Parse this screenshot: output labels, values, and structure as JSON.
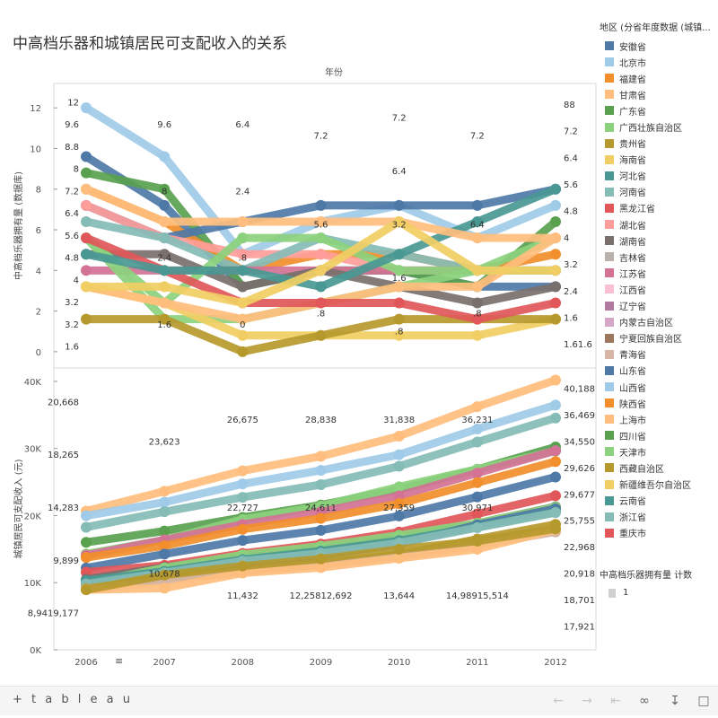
{
  "chart_title": "中高档乐器和城镇居民可支配收入的关系",
  "column_header": "年份",
  "legend": {
    "title": "地区 (分省年度数据 (城镇...",
    "items": [
      {
        "name": "安徽省",
        "color": "#4e79a7"
      },
      {
        "name": "北京市",
        "color": "#a0cbe8"
      },
      {
        "name": "福建省",
        "color": "#f28e2b"
      },
      {
        "name": "甘肃省",
        "color": "#ffbe7d"
      },
      {
        "name": "广东省",
        "color": "#59a14f"
      },
      {
        "name": "广西壮族自治区",
        "color": "#8cd17d"
      },
      {
        "name": "贵州省",
        "color": "#b6992d"
      },
      {
        "name": "海南省",
        "color": "#f1ce63"
      },
      {
        "name": "河北省",
        "color": "#499894"
      },
      {
        "name": "河南省",
        "color": "#86bcb6"
      },
      {
        "name": "黑龙江省",
        "color": "#e15759"
      },
      {
        "name": "湖北省",
        "color": "#ff9d9a"
      },
      {
        "name": "湖南省",
        "color": "#79706e"
      },
      {
        "name": "吉林省",
        "color": "#bab0ac"
      },
      {
        "name": "江苏省",
        "color": "#d37295"
      },
      {
        "name": "江西省",
        "color": "#fabfd2"
      },
      {
        "name": "辽宁省",
        "color": "#b07aa1"
      },
      {
        "name": "内蒙古自治区",
        "color": "#d4a6c8"
      },
      {
        "name": "宁夏回族自治区",
        "color": "#9d7660"
      },
      {
        "name": "青海省",
        "color": "#d7b5a6"
      },
      {
        "name": "山东省",
        "color": "#4e79a7"
      },
      {
        "name": "山西省",
        "color": "#a0cbe8"
      },
      {
        "name": "陕西省",
        "color": "#f28e2b"
      },
      {
        "name": "上海市",
        "color": "#ffbe7d"
      },
      {
        "name": "四川省",
        "color": "#59a14f"
      },
      {
        "name": "天津市",
        "color": "#8cd17d"
      },
      {
        "name": "西藏自治区",
        "color": "#b6992d"
      },
      {
        "name": "新疆维吾尔自治区",
        "color": "#f1ce63"
      },
      {
        "name": "云南省",
        "color": "#499894"
      },
      {
        "name": "浙江省",
        "color": "#86bcb6"
      },
      {
        "name": "重庆市",
        "color": "#e15759"
      }
    ]
  },
  "size_legend": {
    "title": "中高档乐器拥有量 计数",
    "label": "1"
  },
  "toolbar": {
    "logo": "+ t a b l e a u"
  },
  "chart_data": [
    {
      "type": "line",
      "ylabel": "中高档乐器拥有量 (数据库)",
      "ylim": [
        -0.8,
        13.2
      ],
      "yticks": [
        0,
        2,
        4,
        6,
        8,
        10,
        12
      ],
      "x": [
        "2006",
        "2007",
        "2008",
        "2009",
        "2010",
        "2011",
        "2012"
      ],
      "series": [
        {
          "name": "北京市",
          "values": [
            12,
            9.6,
            4.8,
            6.4,
            7.2,
            5.6,
            7.2
          ]
        },
        {
          "name": "安徽省",
          "values": [
            9.6,
            7.2,
            3.2,
            4,
            4,
            3.2,
            3.2
          ]
        },
        {
          "name": "广东省",
          "values": [
            8.8,
            8,
            3.2,
            4,
            4,
            3.2,
            6.4
          ]
        },
        {
          "name": "福建省",
          "values": [
            8,
            6.4,
            4,
            4.8,
            4.8,
            4,
            4.8
          ]
        },
        {
          "name": "山东省",
          "values": [
            7.2,
            5.6,
            6.4,
            7.2,
            7.2,
            7.2,
            8
          ]
        },
        {
          "name": "湖北省",
          "values": [
            7.2,
            5.6,
            4.8,
            4.8,
            4,
            4,
            4
          ]
        },
        {
          "name": "河南省",
          "values": [
            6.4,
            5.6,
            4,
            5.6,
            4.8,
            4,
            4
          ]
        },
        {
          "name": "江苏省",
          "values": [
            4,
            4,
            4,
            4,
            4,
            4,
            4
          ]
        },
        {
          "name": "湖南省",
          "values": [
            4.8,
            4.8,
            3.2,
            4,
            3.2,
            2.4,
            3.2
          ]
        },
        {
          "name": "广西壮族自治区",
          "values": [
            5.6,
            2.4,
            5.6,
            5.6,
            4,
            4,
            4
          ]
        },
        {
          "name": "天津市",
          "values": [
            5.6,
            1.6,
            1.6,
            2.4,
            3.2,
            4,
            5.6
          ]
        },
        {
          "name": "海南省",
          "values": [
            3.2,
            2.4,
            0.8,
            0.8,
            0.8,
            0.8,
            1.6
          ]
        },
        {
          "name": "甘肃省",
          "values": [
            3.2,
            2.4,
            1.6,
            2.4,
            3.2,
            3.2,
            5.6
          ]
        },
        {
          "name": "贵州省",
          "values": [
            1.6,
            1.6,
            0,
            0.8,
            1.6,
            1.6,
            1.6
          ]
        },
        {
          "name": "重庆市",
          "values": [
            5.6,
            4,
            2.4,
            2.4,
            2.4,
            1.6,
            2.4
          ]
        },
        {
          "name": "河北省",
          "values": [
            4.8,
            4,
            4,
            3.2,
            4.8,
            6.4,
            8
          ]
        },
        {
          "name": "上海市",
          "values": [
            8,
            6.4,
            6.4,
            6.4,
            6.4,
            5.6,
            5.6
          ]
        },
        {
          "name": "新疆维吾尔自治区",
          "values": [
            3.2,
            3.2,
            2.4,
            4,
            6.4,
            4,
            4
          ]
        }
      ],
      "point_labels": [
        {
          "x": "2006",
          "text": "12"
        },
        {
          "x": "2006",
          "text": "9.6"
        },
        {
          "x": "2006",
          "text": "8.8"
        },
        {
          "x": "2006",
          "text": "8"
        },
        {
          "x": "2006",
          "text": "7.2"
        },
        {
          "x": "2006",
          "text": "6.4"
        },
        {
          "x": "2006",
          "text": "5.6"
        },
        {
          "x": "2006",
          "text": "4.8"
        },
        {
          "x": "2006",
          "text": "4"
        },
        {
          "x": "2006",
          "text": "3.2"
        },
        {
          "x": "2006",
          "text": "3.2"
        },
        {
          "x": "2006",
          "text": "1.6"
        },
        {
          "x": "2007",
          "text": "9.6"
        },
        {
          "x": "2007",
          "text": "8"
        },
        {
          "x": "2007",
          "text": "2.4"
        },
        {
          "x": "2007",
          "text": "1.6"
        },
        {
          "x": "2008",
          "text": "6.4"
        },
        {
          "x": "2008",
          "text": "2.4"
        },
        {
          "x": "2008",
          "text": ".8"
        },
        {
          "x": "2008",
          "text": "0"
        },
        {
          "x": "2009",
          "text": "7.2"
        },
        {
          "x": "2009",
          "text": "5.6"
        },
        {
          "x": "2009",
          "text": ".8"
        },
        {
          "x": "2010",
          "text": "7.2"
        },
        {
          "x": "2010",
          "text": "6.4"
        },
        {
          "x": "2010",
          "text": "3.2"
        },
        {
          "x": "2010",
          "text": "1.6"
        },
        {
          "x": "2010",
          "text": ".8"
        },
        {
          "x": "2011",
          "text": "7.2"
        },
        {
          "x": "2011",
          "text": "6.4"
        },
        {
          "x": "2011",
          "text": ".8"
        },
        {
          "x": "2012",
          "text": "88"
        },
        {
          "x": "2012",
          "text": "7.2"
        },
        {
          "x": "2012",
          "text": "6.4"
        },
        {
          "x": "2012",
          "text": "5.6"
        },
        {
          "x": "2012",
          "text": "4.8"
        },
        {
          "x": "2012",
          "text": "4"
        },
        {
          "x": "2012",
          "text": "3.2"
        },
        {
          "x": "2012",
          "text": "2.4"
        },
        {
          "x": "2012",
          "text": "1.6"
        },
        {
          "x": "2012",
          "text": "1.61.6"
        }
      ]
    },
    {
      "type": "line",
      "ylabel": "城镇居民可支配收入 (元)",
      "ylim": [
        0,
        42000
      ],
      "yticks": [
        0,
        10000,
        20000,
        30000,
        40000
      ],
      "ytick_labels": [
        "0K",
        "10K",
        "20K",
        "30K",
        "40K"
      ],
      "x": [
        "2006",
        "2007",
        "2008",
        "2009",
        "2010",
        "2011",
        "2012"
      ],
      "series": [
        {
          "name": "上海市",
          "values": [
            20668,
            23623,
            26675,
            28838,
            31838,
            36231,
            40188
          ]
        },
        {
          "name": "北京市",
          "values": [
            19978,
            21989,
            24725,
            26738,
            29073,
            32903,
            36469
          ]
        },
        {
          "name": "浙江省",
          "values": [
            18265,
            20574,
            22727,
            24611,
            27359,
            30971,
            34550
          ]
        },
        {
          "name": "广东省",
          "values": [
            16016,
            17699,
            19733,
            21575,
            23898,
            26897,
            30227
          ]
        },
        {
          "name": "天津市",
          "values": [
            14283,
            16357,
            19423,
            21402,
            24293,
            26921,
            29626
          ]
        },
        {
          "name": "江苏省",
          "values": [
            14084,
            16378,
            18680,
            20552,
            22944,
            26341,
            29677
          ]
        },
        {
          "name": "福建省",
          "values": [
            13753,
            15506,
            17961,
            19577,
            21781,
            24907,
            28055
          ]
        },
        {
          "name": "山东省",
          "values": [
            12192,
            14265,
            16305,
            17811,
            19946,
            22792,
            25755
          ]
        },
        {
          "name": "重庆市",
          "values": [
            11570,
            12591,
            14368,
            15749,
            17532,
            20250,
            22968
          ]
        },
        {
          "name": "湖南省",
          "values": [
            10505,
            12294,
            13821,
            15084,
            16566,
            18844,
            21319
          ]
        },
        {
          "name": "广西壮族自治区",
          "values": [
            9899,
            12200,
            14146,
            15451,
            17064,
            18854,
            21243
          ]
        },
        {
          "name": "安徽省",
          "values": [
            9771,
            11474,
            12990,
            14086,
            15788,
            18606,
            21024
          ]
        },
        {
          "name": "河北省",
          "values": [
            10305,
            11690,
            13441,
            14718,
            16263,
            18292,
            20543
          ]
        },
        {
          "name": "河南省",
          "values": [
            9810,
            11477,
            13231,
            14372,
            15930,
            18195,
            20443
          ]
        },
        {
          "name": "贵州省",
          "values": [
            9117,
            10678,
            11759,
            12863,
            14143,
            16495,
            18701
          ]
        },
        {
          "name": "青海省",
          "values": [
            9000,
            10276,
            11640,
            12692,
            13855,
            15603,
            17566
          ]
        },
        {
          "name": "甘肃省",
          "values": [
            8941,
            9177,
            11432,
            12258,
            13644,
            14989,
            17921
          ]
        },
        {
          "name": "西藏自治区",
          "values": [
            8941,
            11131,
            12482,
            13544,
            14980,
            16196,
            18028
          ]
        }
      ],
      "point_labels": [
        {
          "x": "2006",
          "text": "20,668"
        },
        {
          "x": "2006",
          "text": "18,265"
        },
        {
          "x": "2006",
          "text": "14,283"
        },
        {
          "x": "2006",
          "text": "9,899"
        },
        {
          "x": "2006",
          "text": "8,9419,177"
        },
        {
          "x": "2007",
          "text": "23,623"
        },
        {
          "x": "2007",
          "text": "10,678"
        },
        {
          "x": "2008",
          "text": "26,675"
        },
        {
          "x": "2008",
          "text": "22,727"
        },
        {
          "x": "2008",
          "text": "11,432"
        },
        {
          "x": "2009",
          "text": "28,838"
        },
        {
          "x": "2009",
          "text": "24,611"
        },
        {
          "x": "2009",
          "text": "12,25812,692"
        },
        {
          "x": "2010",
          "text": "31,838"
        },
        {
          "x": "2010",
          "text": "27,359"
        },
        {
          "x": "2010",
          "text": "13,644"
        },
        {
          "x": "2011",
          "text": "36,231"
        },
        {
          "x": "2011",
          "text": "30,971"
        },
        {
          "x": "2011",
          "text": "14,98915,514"
        },
        {
          "x": "2012",
          "text": "40,188"
        },
        {
          "x": "2012",
          "text": "36,469"
        },
        {
          "x": "2012",
          "text": "34,550"
        },
        {
          "x": "2012",
          "text": "29,626"
        },
        {
          "x": "2012",
          "text": "29,677"
        },
        {
          "x": "2012",
          "text": "25,755"
        },
        {
          "x": "2012",
          "text": "22,968"
        },
        {
          "x": "2012",
          "text": "20,918"
        },
        {
          "x": "2012",
          "text": "18,701"
        },
        {
          "x": "2012",
          "text": "17,921"
        }
      ]
    }
  ]
}
